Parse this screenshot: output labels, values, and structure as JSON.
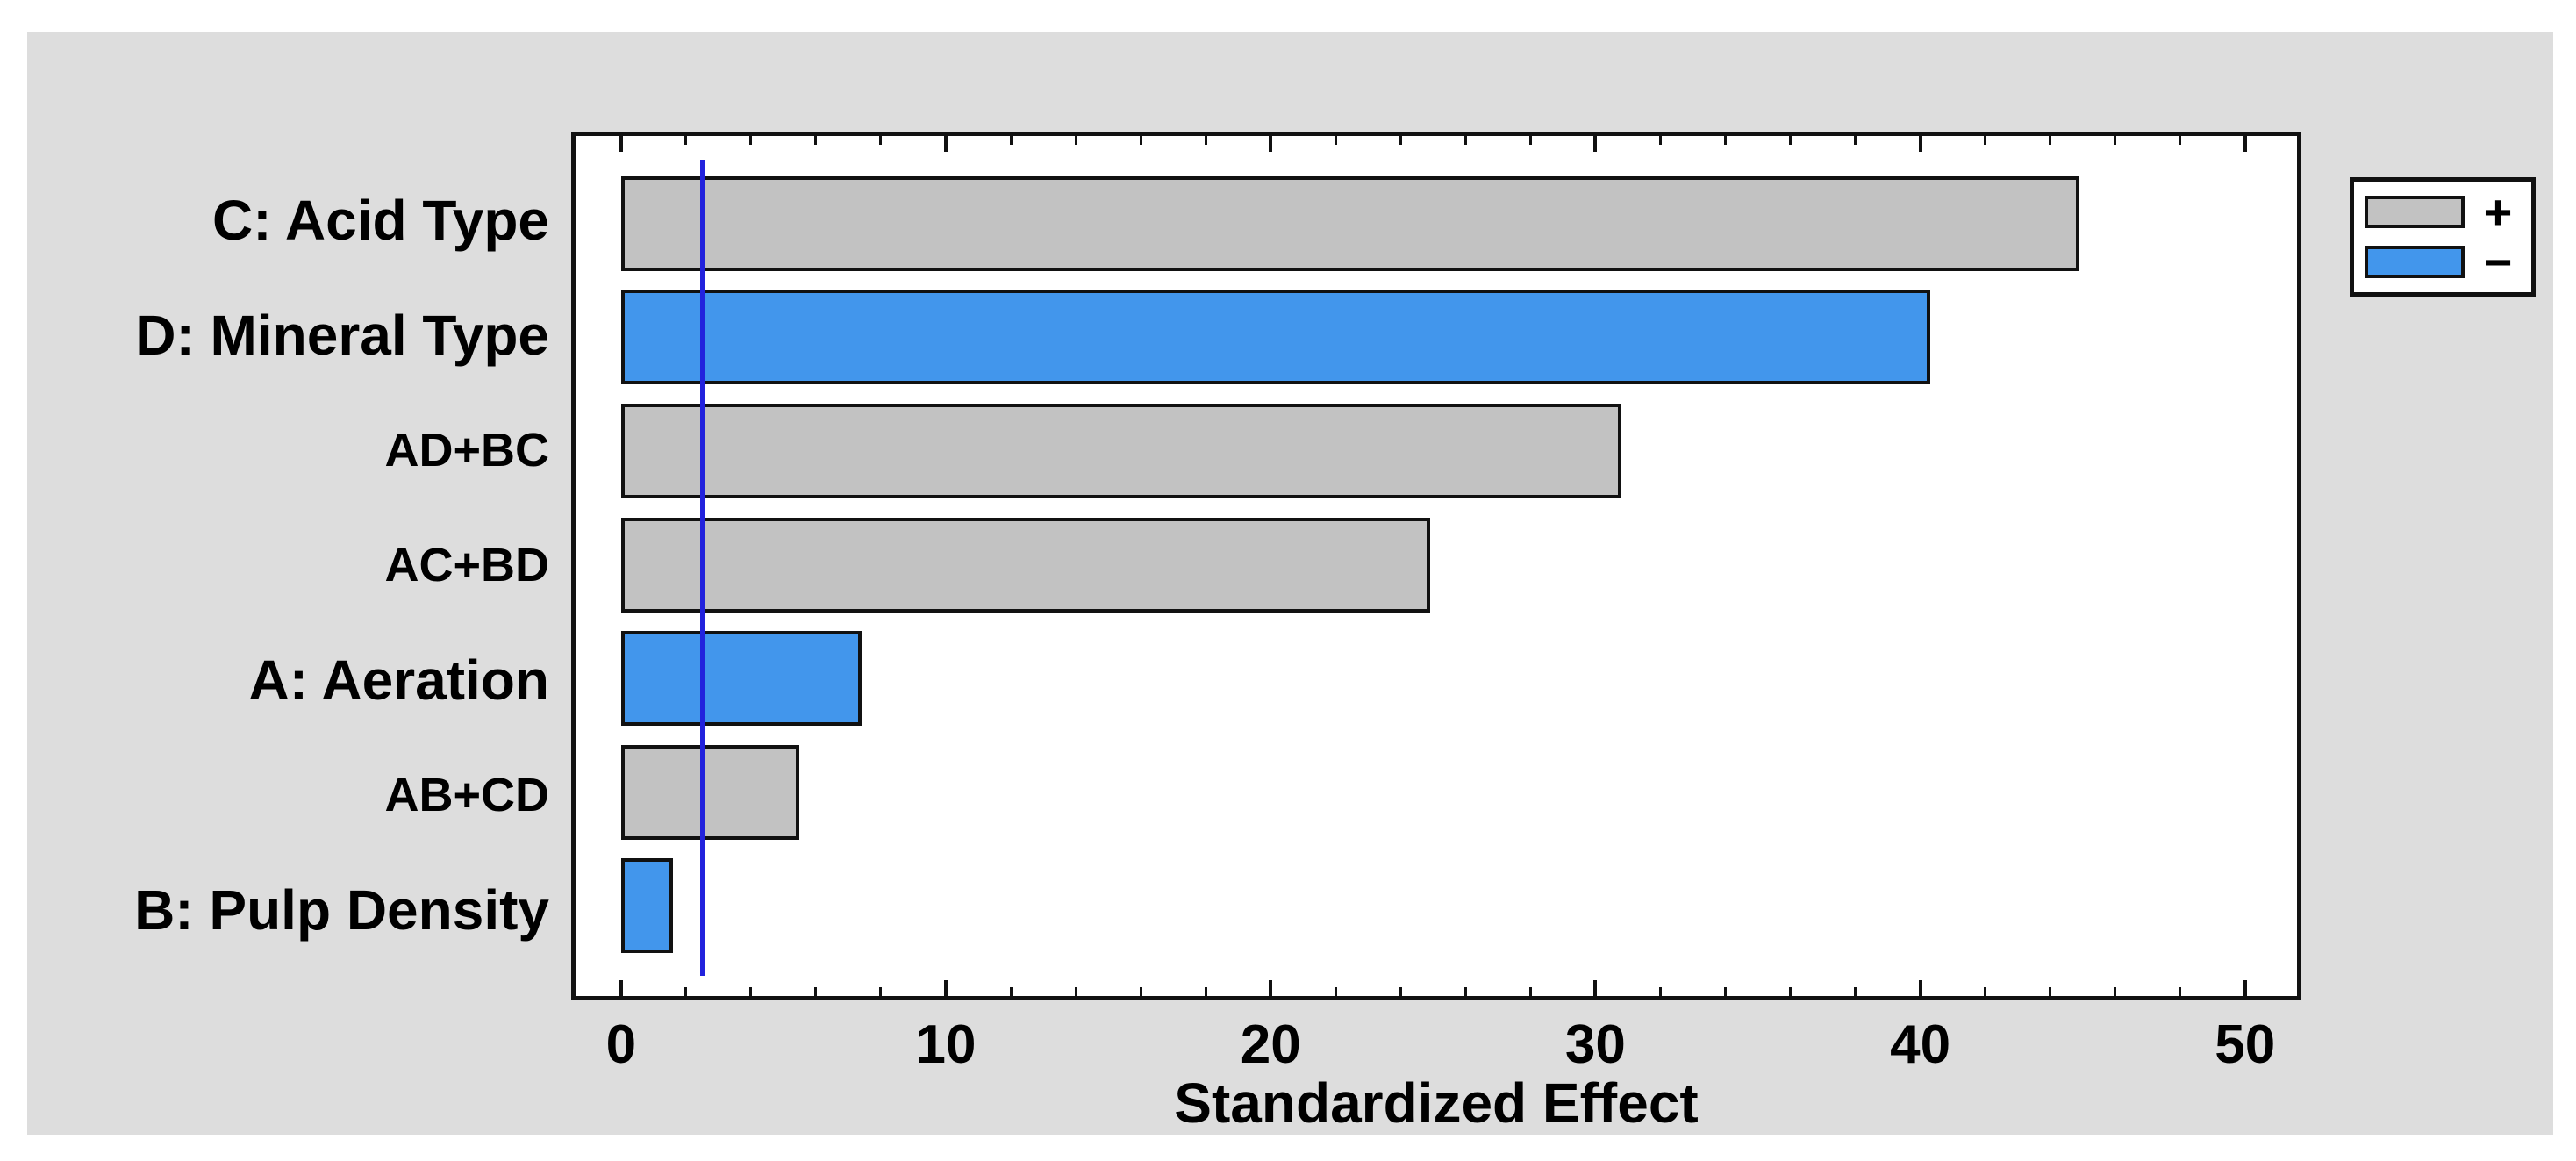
{
  "chart_data": {
    "type": "bar",
    "orientation": "horizontal",
    "title": "",
    "xlabel": "Standardized Effect",
    "categories": [
      "C: Acid Type",
      "D: Mineral Type",
      "AD+BC",
      "AC+BD",
      "A: Aeration",
      "AB+CD",
      "B: Pulp Density"
    ],
    "values": [
      44.9,
      40.3,
      30.8,
      24.9,
      7.4,
      5.5,
      1.6
    ],
    "signs": [
      "+",
      "-",
      "+",
      "+",
      "-",
      "+",
      "-"
    ],
    "label_styles": [
      "main",
      "main",
      "interaction",
      "interaction",
      "main",
      "interaction",
      "main"
    ],
    "xlim": [
      -1.4,
      51.6
    ],
    "x_major_ticks": [
      0,
      10,
      20,
      30,
      40,
      50
    ],
    "x_tick_labels": [
      "0",
      "10",
      "20",
      "30",
      "40",
      "50"
    ],
    "x_minor_tick_step": 2,
    "reference_line": 2.5,
    "grid": false,
    "legend_position": "top-right",
    "legend": [
      {
        "label": "+",
        "sign": "+"
      },
      {
        "label": "−",
        "sign": "-"
      }
    ]
  },
  "colors": {
    "positive_bar": "#C2C2C2",
    "negative_bar": "#4296EC",
    "bar_border": "#111111",
    "reference_line": "#2222DD",
    "panel_background": "#DDDDDD",
    "plot_background": "#FFFFFF",
    "text": "#000000"
  }
}
